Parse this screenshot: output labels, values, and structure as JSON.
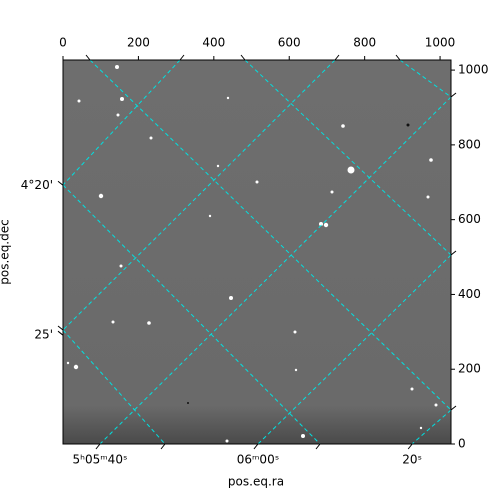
{
  "chart_data": {
    "type": "image",
    "x_label": "pos.eq.ra",
    "y_label": "pos.eq.dec",
    "xlim": [
      0,
      1029
    ],
    "ylim": [
      0,
      1027
    ],
    "xticks": [
      0,
      200,
      400,
      600,
      800,
      1000
    ],
    "yticks": [
      0,
      200,
      400,
      600,
      800,
      1000
    ],
    "ra_ticks": [
      {
        "value": 98,
        "label": "5ʰ05ᵐ40ˢ"
      },
      {
        "value": 517,
        "label": "06ᵐ00ˢ"
      },
      {
        "value": 926,
        "label": "20ˢ"
      }
    ],
    "dec_ticks": [
      {
        "value": 692,
        "label": "4°20'"
      },
      {
        "value": 291,
        "label": "25'"
      }
    ],
    "grid_color": "#00e0e0"
  }
}
